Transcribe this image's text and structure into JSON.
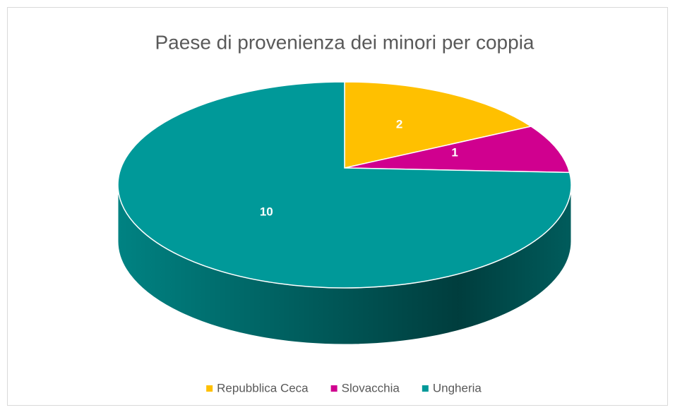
{
  "chart_data": {
    "type": "pie3d",
    "title": "Paese di provenienza dei minori per coppia",
    "categories": [
      "Repubblica Ceca",
      "Slovacchia",
      "Ungheria"
    ],
    "values": [
      2,
      1,
      10
    ],
    "colors": [
      "#ffc000",
      "#d0008f",
      "#009999"
    ],
    "legend": "bottom"
  }
}
